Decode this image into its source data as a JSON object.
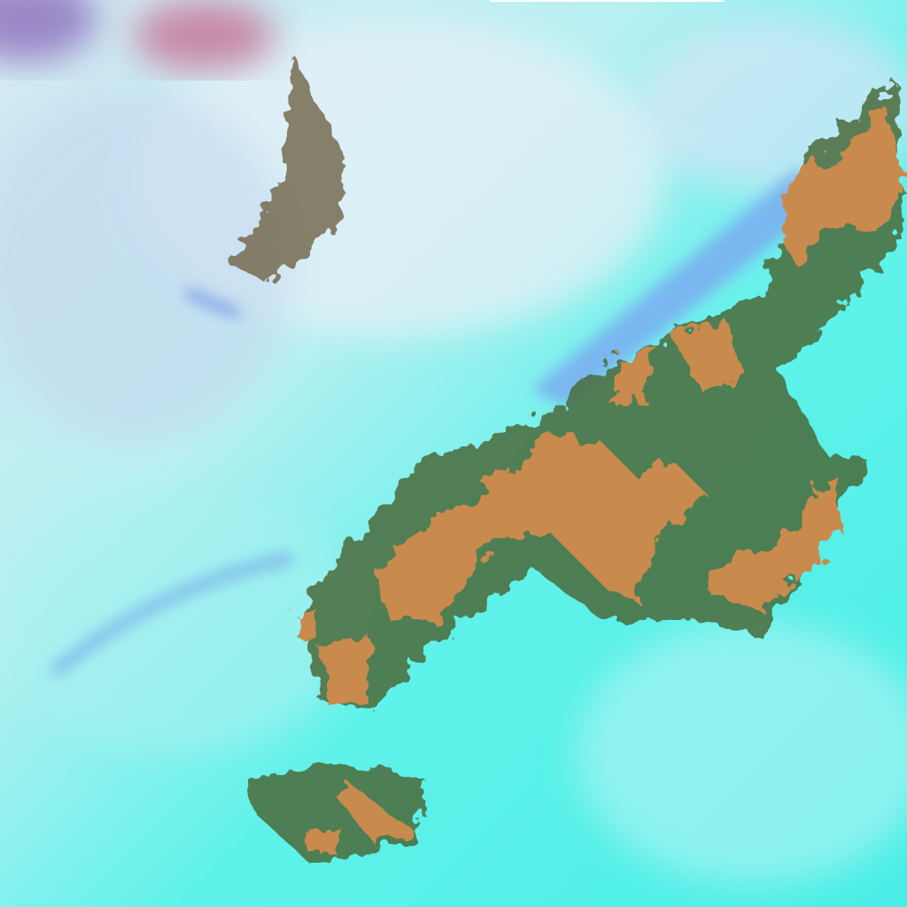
{
  "image": {
    "kind": "false-color satellite imagery",
    "colors": {
      "background": "#4ff0ea",
      "haze": "#d8f4f6",
      "cloud_shadow": "#7aa8f0",
      "land_patch": "#c98a4e",
      "land_edge": "#4a6a3a",
      "desert_pink": "#c88aa8"
    }
  }
}
